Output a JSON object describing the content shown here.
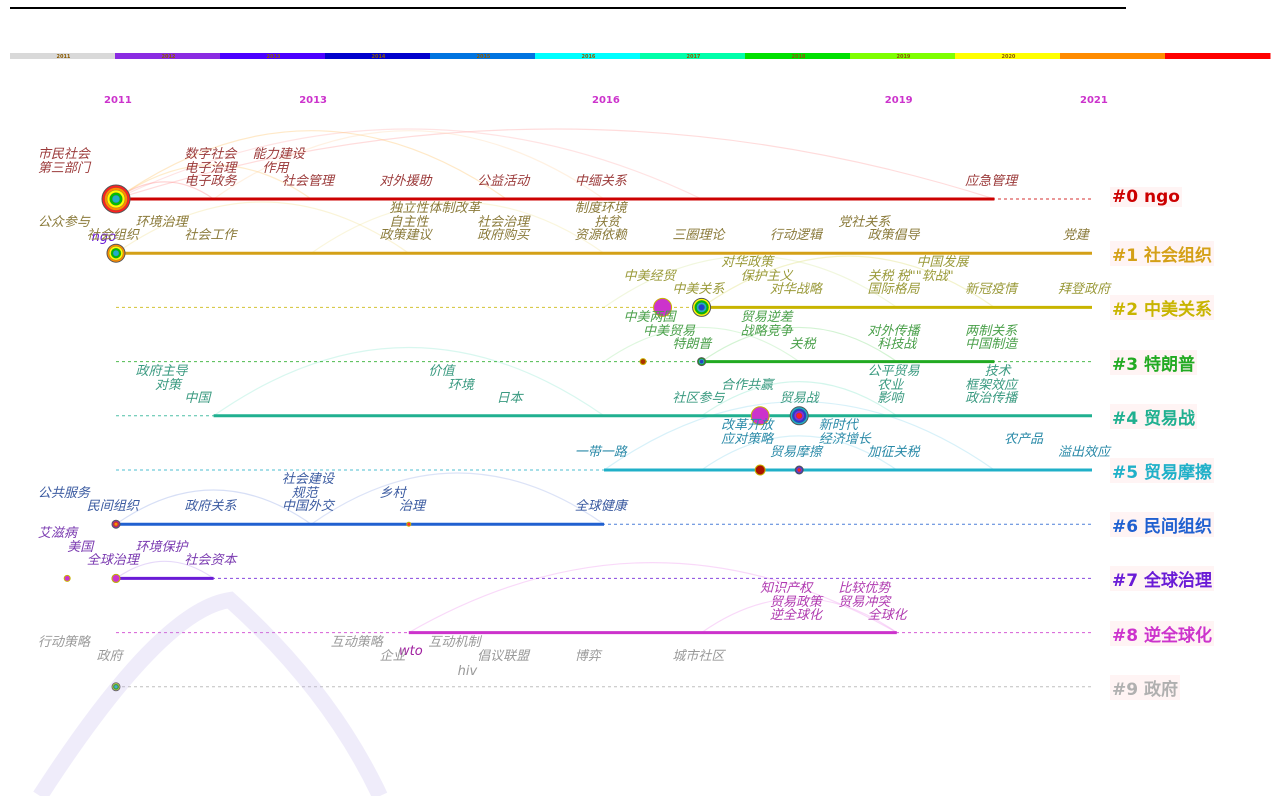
{
  "colors": {
    "timeline_bands": [
      "#d9d9d9",
      "#8a2be2",
      "#4b00ff",
      "#0000cc",
      "#0074e0",
      "#00ffff",
      "#00ffaa",
      "#00e000",
      "#7fff00",
      "#ffff00",
      "#ff8c00",
      "#ff0000"
    ],
    "clusters": [
      "#cc0000",
      "#d4a017",
      "#c8c800",
      "#22aa22",
      "#20b090",
      "#20b0c8",
      "#2060d0",
      "#6a1bd6",
      "#cc33cc",
      "#b0b0b0"
    ]
  },
  "timeline": {
    "band_years": [
      "2011",
      "2012",
      "2013",
      "2014",
      "2015",
      "2016",
      "2017",
      "2018",
      "2019",
      "2020"
    ],
    "year_ticks": [
      {
        "label": "2011",
        "year": 2011
      },
      {
        "label": "2013",
        "year": 2013
      },
      {
        "label": "2016",
        "year": 2016
      },
      {
        "label": "2019",
        "year": 2019
      },
      {
        "label": "2021",
        "year": 2021
      }
    ]
  },
  "clusters": [
    {
      "label": "#0 ngo",
      "color": "#cc0000",
      "start": 2011,
      "end": 2020,
      "node": {
        "year": 2011,
        "size": 3
      }
    },
    {
      "label": "#1 社会组织",
      "color": "#d4a017",
      "start": 2011,
      "end": 2021,
      "node": {
        "year": 2011,
        "size": 2
      }
    },
    {
      "label": "#2 中美关系",
      "color": "#c8b400",
      "start": 2017,
      "end": 2021,
      "node": {
        "year": 2017,
        "size": 2
      }
    },
    {
      "label": "#3 特朗普",
      "color": "#22aa22",
      "start": 2017,
      "end": 2020,
      "node": {
        "year": 2017,
        "size": 1
      }
    },
    {
      "label": "#4 贸易战",
      "color": "#20b090",
      "start": 2012,
      "end": 2021,
      "node": {
        "year": 2018,
        "size": 2
      }
    },
    {
      "label": "#5 贸易摩擦",
      "color": "#20b0c8",
      "start": 2016,
      "end": 2021,
      "node": {
        "year": 2018,
        "size": 1
      }
    },
    {
      "label": "#6 民间组织",
      "color": "#2060d0",
      "start": 2011,
      "end": 2016,
      "node": {
        "year": 2011,
        "size": 1
      }
    },
    {
      "label": "#7 全球治理",
      "color": "#6a1bd6",
      "start": 2011,
      "end": 2012,
      "node": {
        "year": 2011,
        "size": 1
      }
    },
    {
      "label": "#8 逆全球化",
      "color": "#cc33cc",
      "start": 2014,
      "end": 2019,
      "node": null
    },
    {
      "label": "#9 政府",
      "color": "#b0b0b0",
      "start": null,
      "end": null,
      "node": {
        "year": 2011,
        "size": 1
      }
    }
  ],
  "keywords": [
    {
      "text": "市民社会",
      "row": 0,
      "line": 1,
      "year": 2010.2,
      "color": "#9b3a3a"
    },
    {
      "text": "第三部门",
      "row": 0,
      "line": 2,
      "year": 2010.2,
      "color": "#9b3a3a"
    },
    {
      "text": "数字社会",
      "row": 0,
      "line": 1,
      "year": 2011.7,
      "color": "#9b3a3a"
    },
    {
      "text": "能力建设",
      "row": 0,
      "line": 1,
      "year": 2012.4,
      "color": "#9b3a3a"
    },
    {
      "text": "电子治理",
      "row": 0,
      "line": 2,
      "year": 2011.7,
      "color": "#9b3a3a"
    },
    {
      "text": "作用",
      "row": 0,
      "line": 2,
      "year": 2012.5,
      "color": "#9b3a3a"
    },
    {
      "text": "电子政务",
      "row": 0,
      "line": 3,
      "year": 2011.7,
      "color": "#9b3a3a"
    },
    {
      "text": "社会管理",
      "row": 0,
      "line": 3,
      "year": 2012.7,
      "color": "#9b3a3a"
    },
    {
      "text": "对外援助",
      "row": 0,
      "line": 3,
      "year": 2013.7,
      "color": "#9b3a3a"
    },
    {
      "text": "公益活动",
      "row": 0,
      "line": 3,
      "year": 2014.7,
      "color": "#9b3a3a"
    },
    {
      "text": "中缅关系",
      "row": 0,
      "line": 3,
      "year": 2015.7,
      "color": "#9b3a3a"
    },
    {
      "text": "应急管理",
      "row": 0,
      "line": 3,
      "year": 2019.7,
      "color": "#9b3a3a"
    },
    {
      "text": "ngo",
      "row": 1,
      "line": 0,
      "year": 2010.75,
      "color": "#6a1bd6"
    },
    {
      "text": "独立性",
      "row": 1,
      "line": 1,
      "year": 2013.8,
      "color": "#8a7a3a"
    },
    {
      "text": "体制改革",
      "row": 1,
      "line": 1,
      "year": 2014.2,
      "color": "#8a7a3a"
    },
    {
      "text": "制度环境",
      "row": 1,
      "line": 1,
      "year": 2015.7,
      "color": "#8a7a3a"
    },
    {
      "text": "公众参与",
      "row": 1,
      "line": 2,
      "year": 2010.2,
      "color": "#8a7a3a"
    },
    {
      "text": "环境治理",
      "row": 1,
      "line": 2,
      "year": 2011.2,
      "color": "#8a7a3a"
    },
    {
      "text": "自主性",
      "row": 1,
      "line": 2,
      "year": 2013.8,
      "color": "#8a7a3a"
    },
    {
      "text": "社会治理",
      "row": 1,
      "line": 2,
      "year": 2014.7,
      "color": "#8a7a3a"
    },
    {
      "text": "扶贫",
      "row": 1,
      "line": 2,
      "year": 2015.9,
      "color": "#8a7a3a"
    },
    {
      "text": "党社关系",
      "row": 1,
      "line": 2,
      "year": 2018.4,
      "color": "#8a7a3a"
    },
    {
      "text": "社会组织",
      "row": 1,
      "line": 3,
      "year": 2010.7,
      "color": "#8a7a3a"
    },
    {
      "text": "社会工作",
      "row": 1,
      "line": 3,
      "year": 2011.7,
      "color": "#8a7a3a"
    },
    {
      "text": "政策建议",
      "row": 1,
      "line": 3,
      "year": 2013.7,
      "color": "#8a7a3a"
    },
    {
      "text": "政府购买",
      "row": 1,
      "line": 3,
      "year": 2014.7,
      "color": "#8a7a3a"
    },
    {
      "text": "资源依赖",
      "row": 1,
      "line": 3,
      "year": 2015.7,
      "color": "#8a7a3a"
    },
    {
      "text": "三圈理论",
      "row": 1,
      "line": 3,
      "year": 2016.7,
      "color": "#8a7a3a"
    },
    {
      "text": "行动逻辑",
      "row": 1,
      "line": 3,
      "year": 2017.7,
      "color": "#8a7a3a"
    },
    {
      "text": "政策倡导",
      "row": 1,
      "line": 3,
      "year": 2018.7,
      "color": "#8a7a3a"
    },
    {
      "text": "党建",
      "row": 1,
      "line": 3,
      "year": 2020.7,
      "color": "#8a7a3a"
    },
    {
      "text": "对华政策",
      "row": 2,
      "line": 1,
      "year": 2017.2,
      "color": "#9a9a3a"
    },
    {
      "text": "中国发展",
      "row": 2,
      "line": 1,
      "year": 2019.2,
      "color": "#9a9a3a"
    },
    {
      "text": "中美经贸",
      "row": 2,
      "line": 2,
      "year": 2016.2,
      "color": "#9a9a3a"
    },
    {
      "text": "保护主义",
      "row": 2,
      "line": 2,
      "year": 2017.4,
      "color": "#9a9a3a"
    },
    {
      "text": "关税",
      "row": 2,
      "line": 2,
      "year": 2018.7,
      "color": "#9a9a3a"
    },
    {
      "text": "税\"\"软战\"",
      "row": 2,
      "line": 2,
      "year": 2019.0,
      "color": "#9a9a3a"
    },
    {
      "text": "中美关系",
      "row": 2,
      "line": 3,
      "year": 2016.7,
      "color": "#9a9a3a"
    },
    {
      "text": "对华战略",
      "row": 2,
      "line": 3,
      "year": 2017.7,
      "color": "#9a9a3a"
    },
    {
      "text": "国际格局",
      "row": 2,
      "line": 3,
      "year": 2018.7,
      "color": "#9a9a3a"
    },
    {
      "text": "新冠疫情",
      "row": 2,
      "line": 3,
      "year": 2019.7,
      "color": "#9a9a3a"
    },
    {
      "text": "拜登政府",
      "row": 2,
      "line": 3,
      "year": 2020.7,
      "color": "#9a9a3a"
    },
    {
      "text": "中美两国",
      "row": 3,
      "line": 1,
      "year": 2016.2,
      "color": "#4aa04a"
    },
    {
      "text": "贸易逆差",
      "row": 3,
      "line": 1,
      "year": 2017.4,
      "color": "#4aa04a"
    },
    {
      "text": "对外传播",
      "row": 3,
      "line": 2,
      "year": 2018.7,
      "color": "#4aa04a"
    },
    {
      "text": "两制关系",
      "row": 3,
      "line": 2,
      "year": 2019.7,
      "color": "#4aa04a"
    },
    {
      "text": "中美贸易",
      "row": 3,
      "line": 2,
      "year": 2016.4,
      "color": "#4aa04a"
    },
    {
      "text": "战略竞争",
      "row": 3,
      "line": 2,
      "year": 2017.4,
      "color": "#4aa04a"
    },
    {
      "text": "特朗普",
      "row": 3,
      "line": 3,
      "year": 2016.7,
      "color": "#4aa04a"
    },
    {
      "text": "关税",
      "row": 3,
      "line": 3,
      "year": 2017.9,
      "color": "#4aa04a"
    },
    {
      "text": "科技战",
      "row": 3,
      "line": 3,
      "year": 2018.8,
      "color": "#4aa04a"
    },
    {
      "text": "中国制造",
      "row": 3,
      "line": 3,
      "year": 2019.7,
      "color": "#4aa04a"
    },
    {
      "text": "政府主导",
      "row": 4,
      "line": 1,
      "year": 2011.2,
      "color": "#3a9a80"
    },
    {
      "text": "价值",
      "row": 4,
      "line": 1,
      "year": 2014.2,
      "color": "#3a9a80"
    },
    {
      "text": "公平贸易",
      "row": 4,
      "line": 1,
      "year": 2018.7,
      "color": "#3a9a80"
    },
    {
      "text": "技术",
      "row": 4,
      "line": 1,
      "year": 2019.9,
      "color": "#3a9a80"
    },
    {
      "text": "对策",
      "row": 4,
      "line": 2,
      "year": 2011.4,
      "color": "#3a9a80"
    },
    {
      "text": "环境",
      "row": 4,
      "line": 2,
      "year": 2014.4,
      "color": "#3a9a80"
    },
    {
      "text": "合作共赢",
      "row": 4,
      "line": 2,
      "year": 2017.2,
      "color": "#3a9a80"
    },
    {
      "text": "农业",
      "row": 4,
      "line": 2,
      "year": 2018.8,
      "color": "#3a9a80"
    },
    {
      "text": "框架效应",
      "row": 4,
      "line": 2,
      "year": 2019.7,
      "color": "#3a9a80"
    },
    {
      "text": "中国",
      "row": 4,
      "line": 3,
      "year": 2011.7,
      "color": "#3a9a80"
    },
    {
      "text": "日本",
      "row": 4,
      "line": 3,
      "year": 2014.9,
      "color": "#3a9a80"
    },
    {
      "text": "社区参与",
      "row": 4,
      "line": 3,
      "year": 2016.7,
      "color": "#3a9a80"
    },
    {
      "text": "贸易战",
      "row": 4,
      "line": 3,
      "year": 2017.8,
      "color": "#3a9a80"
    },
    {
      "text": "影响",
      "row": 4,
      "line": 3,
      "year": 2018.8,
      "color": "#3a9a80"
    },
    {
      "text": "政治传播",
      "row": 4,
      "line": 3,
      "year": 2019.7,
      "color": "#3a9a80"
    },
    {
      "text": "改革开放",
      "row": 5,
      "line": 1,
      "year": 2017.2,
      "color": "#2a8aa8"
    },
    {
      "text": "新时代",
      "row": 5,
      "line": 1,
      "year": 2018.2,
      "color": "#2a8aa8"
    },
    {
      "text": "应对策略",
      "row": 5,
      "line": 2,
      "year": 2017.2,
      "color": "#2a8aa8"
    },
    {
      "text": "经济增长",
      "row": 5,
      "line": 2,
      "year": 2018.2,
      "color": "#2a8aa8"
    },
    {
      "text": "农产品",
      "row": 5,
      "line": 2,
      "year": 2020.1,
      "color": "#2a8aa8"
    },
    {
      "text": "一带一路",
      "row": 5,
      "line": 3,
      "year": 2015.7,
      "color": "#2a8aa8"
    },
    {
      "text": "贸易摩擦",
      "row": 5,
      "line": 3,
      "year": 2017.7,
      "color": "#2a8aa8"
    },
    {
      "text": "加征关税",
      "row": 5,
      "line": 3,
      "year": 2018.7,
      "color": "#2a8aa8"
    },
    {
      "text": "溢出效应",
      "row": 5,
      "line": 3,
      "year": 2020.7,
      "color": "#2a8aa8"
    },
    {
      "text": "社会建设",
      "row": 6,
      "line": 1,
      "year": 2012.7,
      "color": "#3a5aa0"
    },
    {
      "text": "规范",
      "row": 6,
      "line": 2,
      "year": 2012.8,
      "color": "#3a5aa0"
    },
    {
      "text": "乡村",
      "row": 6,
      "line": 2,
      "year": 2013.7,
      "color": "#3a5aa0"
    },
    {
      "text": "公共服务",
      "row": 6,
      "line": 2,
      "year": 2010.2,
      "color": "#3a5aa0"
    },
    {
      "text": "民间组织",
      "row": 6,
      "line": 3,
      "year": 2010.7,
      "color": "#3a5aa0"
    },
    {
      "text": "政府关系",
      "row": 6,
      "line": 3,
      "year": 2011.7,
      "color": "#3a5aa0"
    },
    {
      "text": "中国外交",
      "row": 6,
      "line": 3,
      "year": 2012.7,
      "color": "#3a5aa0"
    },
    {
      "text": "治理",
      "row": 6,
      "line": 3,
      "year": 2013.9,
      "color": "#3a5aa0"
    },
    {
      "text": "全球健康",
      "row": 6,
      "line": 3,
      "year": 2015.7,
      "color": "#3a5aa0"
    },
    {
      "text": "艾滋病",
      "row": 7,
      "line": 1,
      "year": 2010.2,
      "color": "#7a3ab0"
    },
    {
      "text": "美国",
      "row": 7,
      "line": 2,
      "year": 2010.5,
      "color": "#7a3ab0"
    },
    {
      "text": "环境保护",
      "row": 7,
      "line": 2,
      "year": 2011.2,
      "color": "#7a3ab0"
    },
    {
      "text": "全球治理",
      "row": 7,
      "line": 3,
      "year": 2010.7,
      "color": "#7a3ab0"
    },
    {
      "text": "社会资本",
      "row": 7,
      "line": 3,
      "year": 2011.7,
      "color": "#7a3ab0"
    },
    {
      "text": "知识产权",
      "row": 8,
      "line": 1,
      "year": 2017.6,
      "color": "#b03ab0"
    },
    {
      "text": "比较优势",
      "row": 8,
      "line": 1,
      "year": 2018.4,
      "color": "#b03ab0"
    },
    {
      "text": "贸易政策",
      "row": 8,
      "line": 2,
      "year": 2017.7,
      "color": "#b03ab0"
    },
    {
      "text": "贸易冲突",
      "row": 8,
      "line": 2,
      "year": 2018.4,
      "color": "#b03ab0"
    },
    {
      "text": "逆全球化",
      "row": 8,
      "line": 3,
      "year": 2017.7,
      "color": "#b03ab0"
    },
    {
      "text": "全球化",
      "row": 8,
      "line": 3,
      "year": 2018.7,
      "color": "#b03ab0"
    },
    {
      "text": "wto",
      "row": 8,
      "line": 4,
      "year": 2013.9,
      "color": "#a020a0"
    },
    {
      "text": "hiv",
      "row": 9,
      "line": 0,
      "year": 2014.5,
      "color": "#999999"
    },
    {
      "text": "行动策略",
      "row": 9,
      "line": 1,
      "year": 2010.2,
      "color": "#999999"
    },
    {
      "text": "互动策略",
      "row": 9,
      "line": 1,
      "year": 2013.2,
      "color": "#999999"
    },
    {
      "text": "互动机制",
      "row": 9,
      "line": 1,
      "year": 2014.2,
      "color": "#999999"
    },
    {
      "text": "政府",
      "row": 9,
      "line": 2,
      "year": 2010.8,
      "color": "#999999"
    },
    {
      "text": "企业",
      "row": 9,
      "line": 2,
      "year": 2013.7,
      "color": "#999999"
    },
    {
      "text": "倡议联盟",
      "row": 9,
      "line": 2,
      "year": 2014.7,
      "color": "#999999"
    },
    {
      "text": "博弈",
      "row": 9,
      "line": 2,
      "year": 2015.7,
      "color": "#999999"
    },
    {
      "text": "城市社区",
      "row": 9,
      "line": 2,
      "year": 2016.7,
      "color": "#999999"
    }
  ]
}
